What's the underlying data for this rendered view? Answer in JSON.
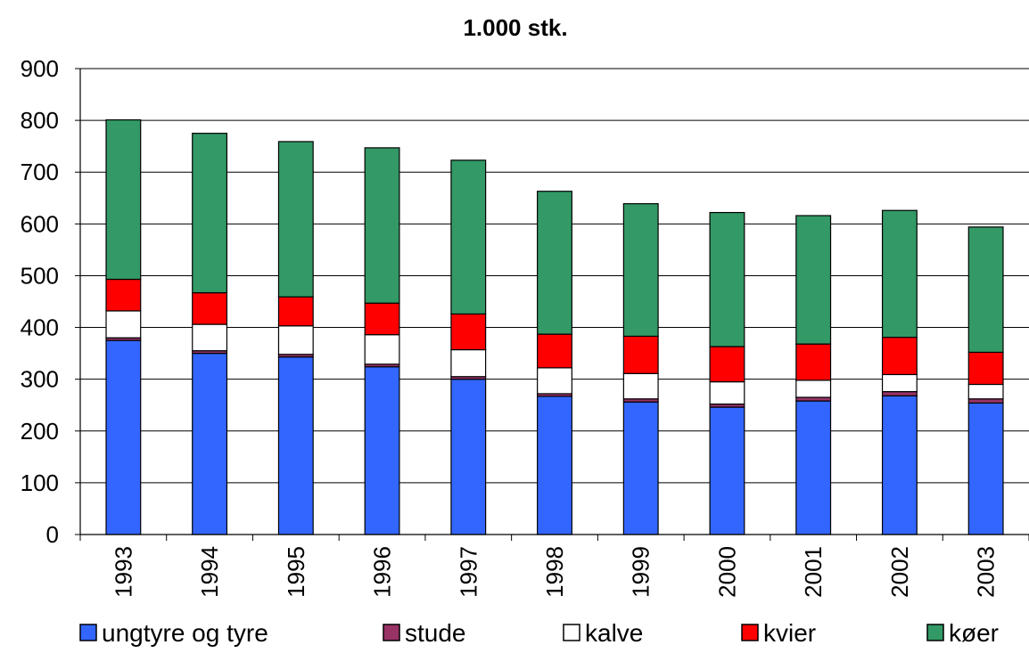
{
  "chart_data": {
    "type": "bar",
    "stacked": true,
    "title": "1.000 stk.",
    "xlabel": "",
    "ylabel": "",
    "ylim": [
      0,
      900
    ],
    "yticks": [
      0,
      100,
      200,
      300,
      400,
      500,
      600,
      700,
      800,
      900
    ],
    "grid": true,
    "legend_position": "bottom",
    "categories": [
      "1993",
      "1994",
      "1995",
      "1996",
      "1997",
      "1998",
      "1999",
      "2000",
      "2001",
      "2002",
      "2003"
    ],
    "series": [
      {
        "name": "ungtyre og tyre",
        "color": "#3366FF",
        "values": [
          375,
          350,
          343,
          324,
          300,
          267,
          256,
          246,
          258,
          268,
          254
        ]
      },
      {
        "name": "stude",
        "color": "#993366",
        "values": [
          5,
          5,
          5,
          5,
          5,
          5,
          6,
          6,
          7,
          8,
          8
        ]
      },
      {
        "name": "kalve",
        "color": "#FFFFFF",
        "values": [
          52,
          51,
          55,
          57,
          52,
          50,
          49,
          43,
          33,
          33,
          28
        ]
      },
      {
        "name": "kvier",
        "color": "#FF0000",
        "values": [
          61,
          61,
          56,
          61,
          69,
          65,
          72,
          68,
          70,
          72,
          62
        ]
      },
      {
        "name": "køer",
        "color": "#339966",
        "values": [
          308,
          308,
          300,
          300,
          297,
          276,
          256,
          259,
          248,
          245,
          242
        ]
      }
    ]
  }
}
